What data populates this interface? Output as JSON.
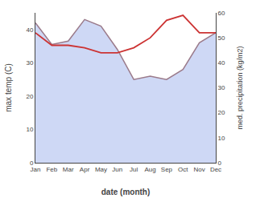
{
  "chart_data": {
    "type": "line",
    "xlabel": "date (month)",
    "ylabel": "max temp (C)",
    "y2label": "med. precipitation (kg/m2)",
    "categories": [
      "Jan",
      "Feb",
      "Mar",
      "Apr",
      "May",
      "Jun",
      "Jul",
      "Aug",
      "Sep",
      "Oct",
      "Nov",
      "Dec"
    ],
    "series": [
      {
        "type": "area",
        "color": "#b3c3f0",
        "values": [
          42,
          35.5,
          36.5,
          43,
          41,
          34,
          25,
          26,
          25,
          28,
          36,
          39
        ]
      },
      {
        "type": "line",
        "color": "#9b7b8b",
        "values": [
          42,
          35.5,
          36.5,
          43,
          41,
          34,
          25,
          26,
          25,
          28,
          36,
          39
        ]
      },
      {
        "type": "line",
        "color": "#cc3333",
        "axis": "y2",
        "values": [
          52,
          47,
          47,
          46,
          44,
          44,
          46,
          50,
          57,
          59,
          52,
          52
        ]
      }
    ],
    "ylim": [
      0,
      45
    ],
    "yticks": [
      0,
      10,
      20,
      30,
      40
    ],
    "y2lim": [
      0,
      60
    ],
    "y2ticks": [
      0,
      10,
      20,
      30,
      40,
      50,
      60
    ],
    "grid": false
  }
}
